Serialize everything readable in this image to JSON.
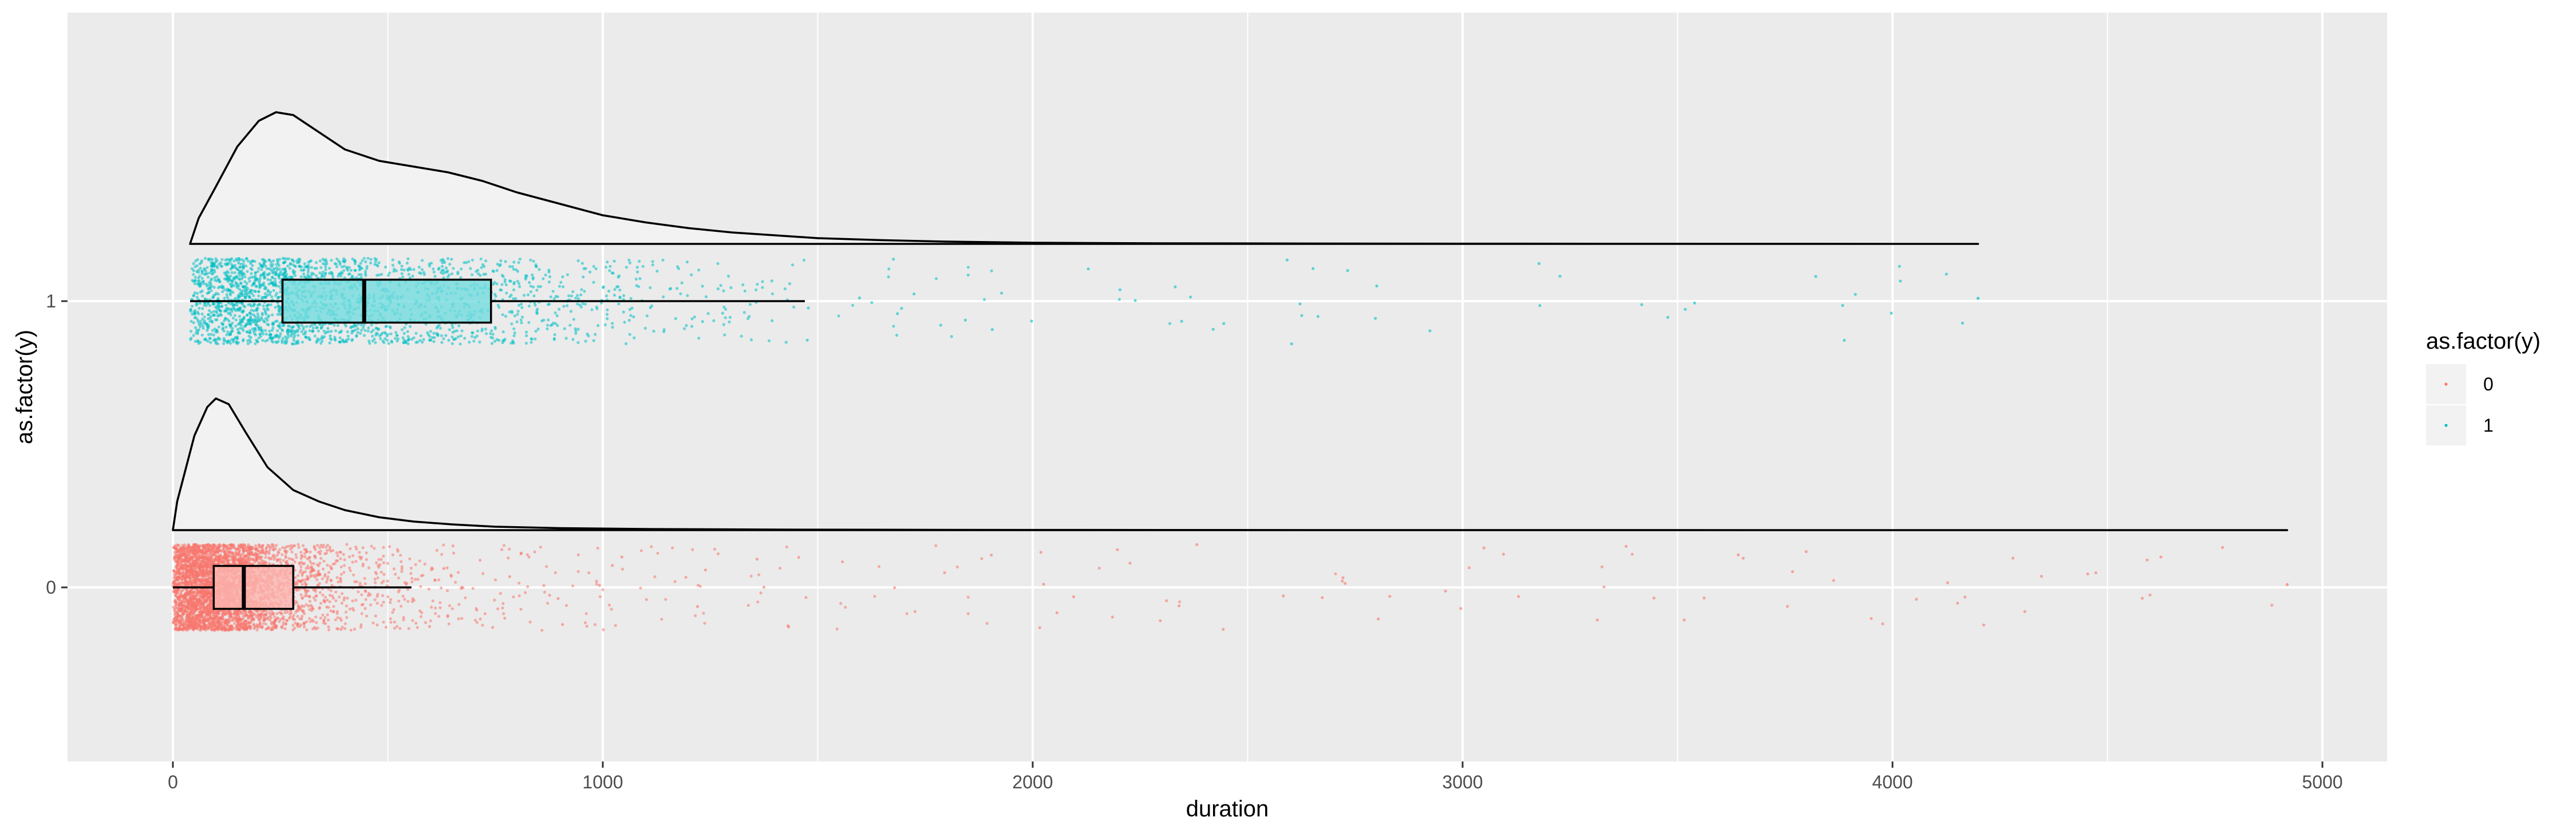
{
  "chart_data": {
    "type": "raincloud",
    "xlabel": "duration",
    "ylabel": "as.factor(y)",
    "xlim": [
      -240,
      5170
    ],
    "ylim": [
      -0.6,
      1.99
    ],
    "x_ticks": [
      0,
      1000,
      2000,
      3000,
      4000,
      5000
    ],
    "x_tick_labels": [
      "0",
      "1000",
      "2000",
      "3000",
      "4000",
      "5000"
    ],
    "y_ticks": [
      0,
      1
    ],
    "y_tick_labels": [
      "0",
      "1"
    ],
    "grid": true,
    "legend": {
      "title": "as.factor(y)",
      "position": "right",
      "entries": [
        {
          "label": "0",
          "color": "#F8766D"
        },
        {
          "label": "1",
          "color": "#00BFC4"
        }
      ]
    },
    "groups": [
      {
        "name": "0",
        "y": 0,
        "color": "#F8766D",
        "box": {
          "whisker_low": 0,
          "q1": 95,
          "median": 165,
          "q3": 280,
          "whisker_high": 555
        },
        "points": {
          "count": 4200,
          "min": 0,
          "max": 4918,
          "jitter_halfwidth": 0.15
        },
        "density": {
          "x_min": 0,
          "x_max": 4918,
          "baseline": 0.2,
          "x": [
            0,
            10,
            50,
            80,
            100,
            130,
            170,
            220,
            280,
            340,
            400,
            480,
            560,
            650,
            750,
            900,
            1100,
            1400,
            1800,
            2400,
            3200,
            4000,
            4918
          ],
          "height": [
            0.0,
            0.1,
            0.33,
            0.43,
            0.46,
            0.44,
            0.34,
            0.22,
            0.14,
            0.1,
            0.07,
            0.045,
            0.03,
            0.02,
            0.012,
            0.007,
            0.004,
            0.002,
            0.001,
            0.0005,
            0.0002,
            0.0001,
            0.0
          ]
        }
      },
      {
        "name": "1",
        "y": 1,
        "color": "#00BFC4",
        "box": {
          "whisker_low": 40,
          "q1": 255,
          "median": 445,
          "q3": 740,
          "whisker_high": 1470
        },
        "points": {
          "count": 2300,
          "min": 40,
          "max": 4199,
          "jitter_halfwidth": 0.15
        },
        "density": {
          "x_min": 40,
          "x_max": 4199,
          "baseline": 1.2,
          "x": [
            40,
            60,
            100,
            150,
            200,
            240,
            280,
            330,
            400,
            480,
            560,
            640,
            720,
            800,
            900,
            1000,
            1100,
            1200,
            1300,
            1400,
            1500,
            1650,
            1800,
            2000,
            2300,
            2800,
            3500,
            4199
          ],
          "height": [
            0.0,
            0.09,
            0.2,
            0.34,
            0.43,
            0.46,
            0.45,
            0.4,
            0.33,
            0.29,
            0.27,
            0.25,
            0.22,
            0.18,
            0.14,
            0.1,
            0.075,
            0.055,
            0.04,
            0.03,
            0.02,
            0.013,
            0.008,
            0.004,
            0.002,
            0.001,
            0.0004,
            0.0
          ]
        }
      }
    ]
  }
}
